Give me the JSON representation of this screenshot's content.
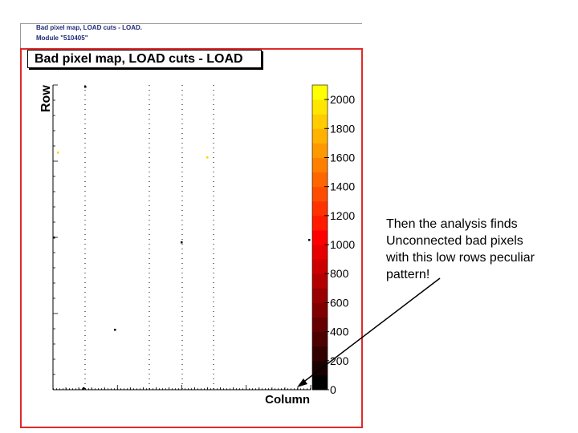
{
  "header": {
    "title": "Bad pixel map, LOAD cuts - LOAD.",
    "module": "Module \"510405\""
  },
  "chart_data": {
    "type": "heatmap",
    "title": "Bad pixel map, LOAD cuts - LOAD",
    "xlabel": "Column",
    "ylabel": "Row",
    "colorbar": {
      "ticks": [
        0,
        200,
        400,
        600,
        800,
        1000,
        1200,
        1400,
        1600,
        1800,
        2000
      ],
      "range": [
        0,
        2100
      ],
      "colors": [
        "#000000",
        "#1a0000",
        "#330000",
        "#4d0000",
        "#660000",
        "#800000",
        "#990000",
        "#b30000",
        "#cc0000",
        "#e60000",
        "#ff0000",
        "#ff1a00",
        "#ff3300",
        "#ff4d00",
        "#ff6600",
        "#ff8000",
        "#ff9900",
        "#ffb300",
        "#ffcc00",
        "#ffe600",
        "#ffff00"
      ]
    },
    "grid": false,
    "legend": "colorbar-right"
  },
  "annotation": {
    "lines": [
      "Then the analysis finds",
      "Unconnected bad pixels",
      "with this low rows peculiar",
      "pattern!"
    ]
  },
  "colors": {
    "frame": "#e02a2a",
    "header_text": "#1f2a78"
  }
}
